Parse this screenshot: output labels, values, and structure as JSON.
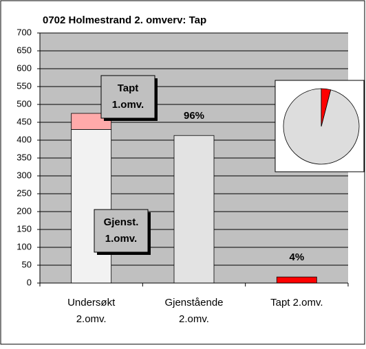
{
  "chart_data": [
    {
      "type": "bar",
      "title": "0702 Holmestrand 2. omverv: Tap",
      "categories": [
        [
          "Undersøkt",
          "2.omv."
        ],
        [
          "Gjenstående",
          "2.omv."
        ],
        [
          "Tapt 2.omv."
        ]
      ],
      "series": [
        {
          "name": [
            "Gjenst.",
            "1.omv."
          ],
          "color": "#f2f2f2",
          "values": [
            430,
            null,
            null
          ]
        },
        {
          "name": [
            "Tapt",
            "1.omv."
          ],
          "color": "#ffaaaa",
          "values": [
            45,
            null,
            null
          ]
        },
        {
          "color": "#e3e3e3",
          "values": [
            null,
            413,
            null
          ]
        },
        {
          "color": "#ff0000",
          "values": [
            null,
            null,
            17
          ]
        }
      ],
      "annotations": [
        {
          "text": "96%",
          "category": 1
        },
        {
          "text": "4%",
          "category": 2
        }
      ],
      "ylim": [
        0,
        700
      ],
      "yticks": [
        0,
        50,
        100,
        150,
        200,
        250,
        300,
        350,
        400,
        450,
        500,
        550,
        600,
        650,
        700
      ],
      "grid": true,
      "stacked": true
    },
    {
      "type": "pie",
      "values": [
        96,
        4
      ],
      "colors": [
        "#dddddd",
        "#ff0000"
      ]
    }
  ]
}
